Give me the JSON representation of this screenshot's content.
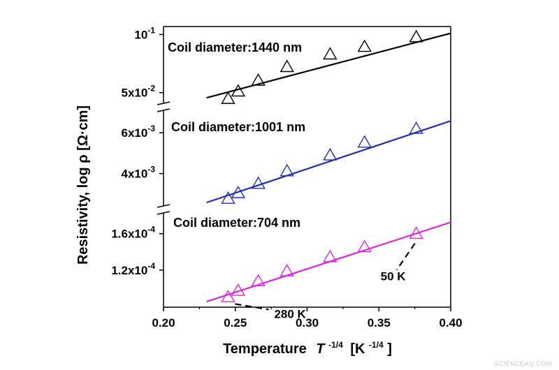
{
  "chart_data": {
    "type": "scatter",
    "xlabel": "Temperature",
    "xlabel_symbol": "T",
    "xlabel_exp": "-1/4",
    "xlabel_unit_open": "[K",
    "xlabel_unit_exp": "-1/4",
    "xlabel_unit_close": "]",
    "ylabel": "Resistivity, log ρ [Ω·cm]",
    "xlim": [
      0.2,
      0.4
    ],
    "x_ticks": [
      {
        "value": 0.2,
        "label": "0.20"
      },
      {
        "value": 0.25,
        "label": "0.25"
      },
      {
        "value": 0.3,
        "label": "0.30"
      },
      {
        "value": 0.35,
        "label": "0.35"
      },
      {
        "value": 0.4,
        "label": "0.40"
      }
    ],
    "y_axis": "broken log scale, three panels",
    "grid": false,
    "series": [
      {
        "name": "Coil diameter:1440 nm",
        "color": "#000000",
        "x": [
          0.245,
          0.252,
          0.266,
          0.286,
          0.316,
          0.34,
          0.376
        ],
        "y": [
          0.0465,
          0.0508,
          0.0578,
          0.068,
          0.079,
          0.0865,
          0.097
        ],
        "fit_x": [
          0.23,
          0.4
        ],
        "fit_y": [
          0.047,
          0.1015
        ],
        "ylim": [
          0.044,
          0.11
        ],
        "y_ticks": [
          {
            "value": 0.1,
            "mant": "10",
            "exp": "-1"
          },
          {
            "value": 0.05,
            "mant": "5x10",
            "exp": "-2"
          }
        ]
      },
      {
        "name": "Coil diameter:1001 nm",
        "color": "#1f2fb5",
        "x": [
          0.245,
          0.252,
          0.266,
          0.286,
          0.316,
          0.34,
          0.376
        ],
        "y": [
          0.00312,
          0.0033,
          0.00362,
          0.0041,
          0.0048,
          0.00545,
          0.00625
        ],
        "fit_x": [
          0.23,
          0.4
        ],
        "fit_y": [
          0.003,
          0.00675
        ],
        "ylim": [
          0.0029,
          0.0075
        ],
        "y_ticks": [
          {
            "value": 0.006,
            "mant": "6x10",
            "exp": "-3"
          },
          {
            "value": 0.004,
            "mant": "4x10",
            "exp": "-3"
          }
        ]
      },
      {
        "name": "Coil diameter:704 nm",
        "color": "#dd22dd",
        "x": [
          0.245,
          0.252,
          0.266,
          0.286,
          0.316,
          0.34,
          0.376
        ],
        "y": [
          9.7e-05,
          0.000102,
          0.00011,
          0.000119,
          0.000133,
          0.000144,
          0.00016
        ],
        "fit_x": [
          0.23,
          0.4
        ],
        "fit_y": [
          9.35e-05,
          0.000175
        ],
        "ylim": [
          8.95e-05,
          0.0001885
        ],
        "y_ticks": [
          {
            "value": 0.00016,
            "mant": "1.6x10",
            "exp": "-4"
          },
          {
            "value": 0.00012,
            "mant": "1.2x10",
            "exp": "-4"
          }
        ]
      }
    ],
    "annotations": [
      {
        "text": "280 K",
        "x": 0.245,
        "series": 2
      },
      {
        "text": "50 K",
        "x": 0.376,
        "series": 2
      }
    ]
  },
  "watermark": "SCIENCEAQ.COM"
}
